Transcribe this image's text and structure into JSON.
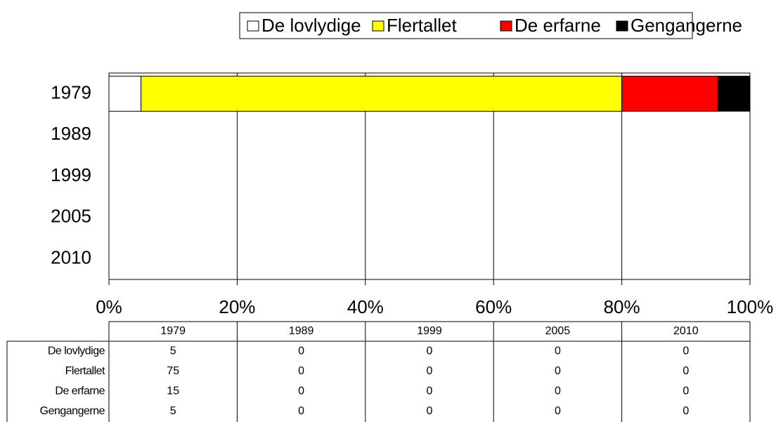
{
  "chart_data": {
    "type": "bar",
    "orientation": "horizontal",
    "stacked": true,
    "categories": [
      "1979",
      "1989",
      "1999",
      "2005",
      "2010"
    ],
    "series": [
      {
        "name": "De lovlydige",
        "color": "#ffffff",
        "values": [
          5,
          0,
          0,
          0,
          0
        ]
      },
      {
        "name": "Flertallet",
        "color": "#ffff00",
        "values": [
          75,
          0,
          0,
          0,
          0
        ]
      },
      {
        "name": "De erfarne",
        "color": "#ff0000",
        "values": [
          15,
          0,
          0,
          0,
          0
        ]
      },
      {
        "name": "Gengangerne",
        "color": "#000000",
        "values": [
          5,
          0,
          0,
          0,
          0
        ]
      }
    ],
    "xlim": [
      0,
      100
    ],
    "xticks": [
      {
        "value": 0,
        "label": "0%"
      },
      {
        "value": 20,
        "label": "20%"
      },
      {
        "value": 40,
        "label": "40%"
      },
      {
        "value": 60,
        "label": "60%"
      },
      {
        "value": 80,
        "label": "80%"
      },
      {
        "value": 100,
        "label": "100%"
      }
    ],
    "grid": true,
    "legend": "top",
    "data_table": true
  }
}
